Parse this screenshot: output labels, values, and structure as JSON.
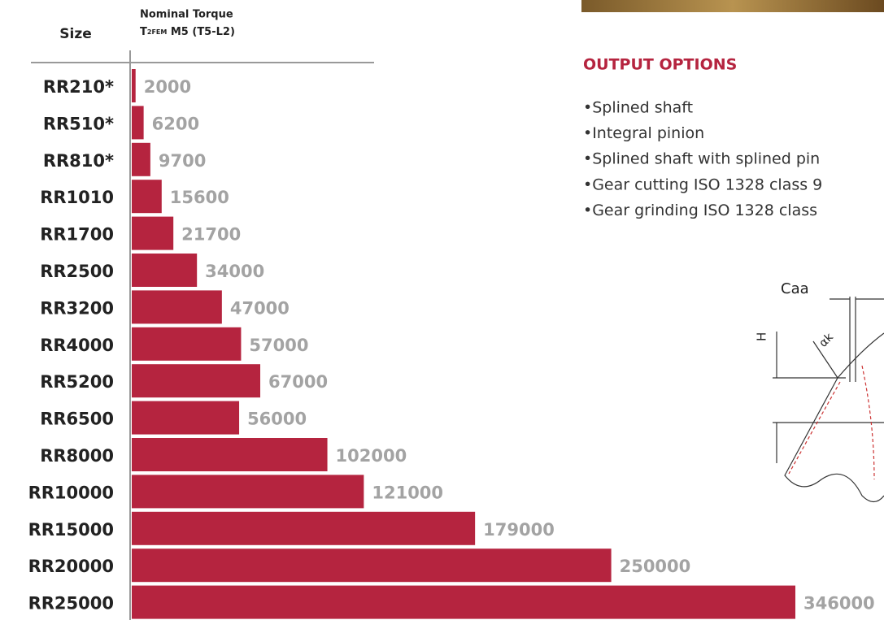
{
  "chart_data": {
    "type": "bar",
    "orientation": "horizontal",
    "category_header": "Size",
    "value_header": "Nominal Torque",
    "value_subheader": {
      "symbol": "T",
      "subscript": "2FEM",
      "rest": " M5 (T5-L2)"
    },
    "categories": [
      "RR210*",
      "RR510*",
      "RR810*",
      "RR1010",
      "RR1700",
      "RR2500",
      "RR3200",
      "RR4000",
      "RR5200",
      "RR6500",
      "RR8000",
      "RR10000",
      "RR15000",
      "RR20000",
      "RR25000"
    ],
    "values": [
      2000,
      6200,
      9700,
      15600,
      21700,
      34000,
      47000,
      57000,
      67000,
      56000,
      102000,
      121000,
      179000,
      250000,
      346000
    ],
    "color": "#b5243f"
  },
  "output_options": {
    "title": "OUTPUT OPTIONS",
    "items": [
      "•Splined shaft",
      "•Integral pinion",
      "•Splined shaft with splined pin",
      "•Gear cutting ISO 1328 class 9",
      "•Gear grinding ISO 1328 class"
    ]
  },
  "diagram": {
    "labels": [
      "Caa",
      "H",
      "αk"
    ]
  }
}
